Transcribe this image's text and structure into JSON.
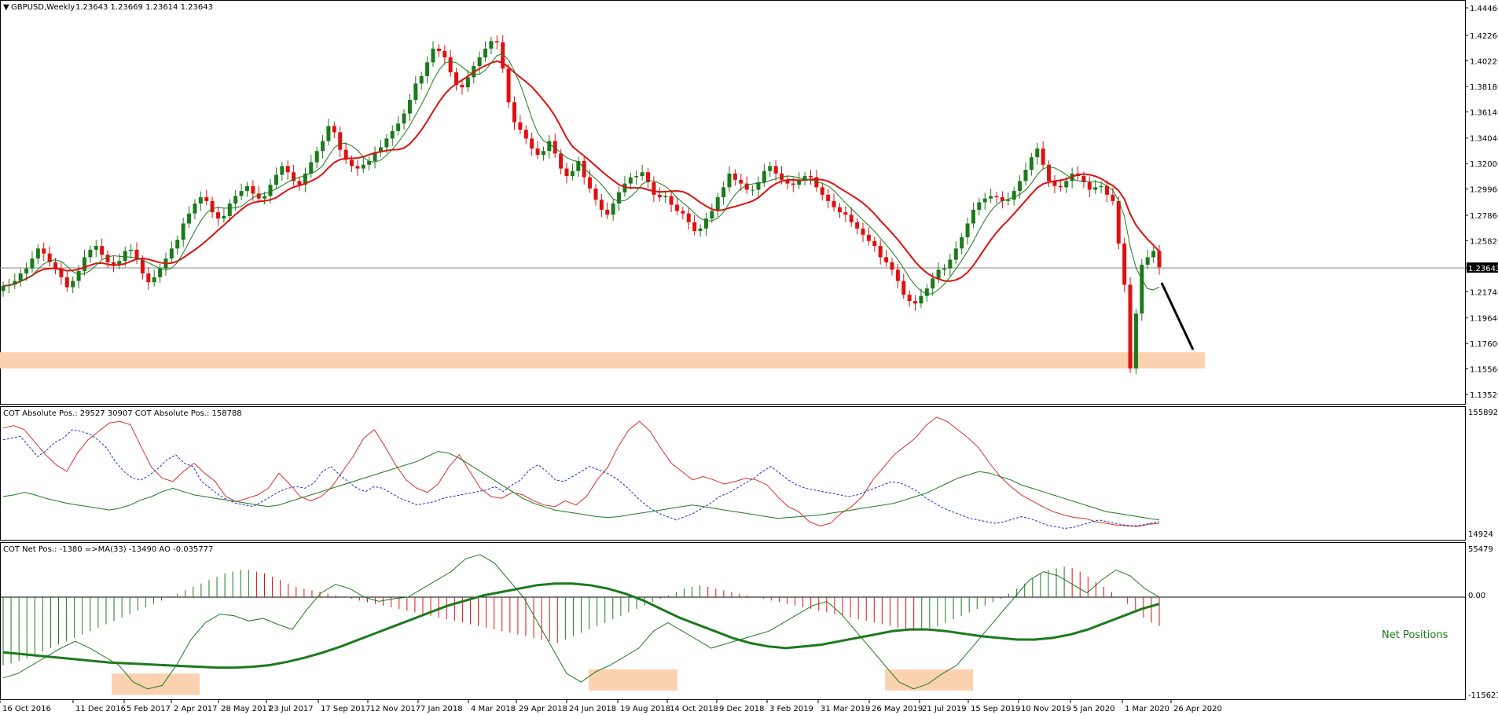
{
  "header": {
    "symbol": "GBPUSD,Weekly",
    "ohlc": "1.23643 1.23669 1.23614 1.23643"
  },
  "panes": {
    "price": {
      "y_ticks": [
        "1.44460",
        "1.42260",
        "1.40220",
        "1.38180",
        "1.36140",
        "1.34040",
        "1.32000",
        "1.29960",
        "1.27860",
        "1.25820",
        "1.23643",
        "1.21740",
        "1.19640",
        "1.17600",
        "1.15560",
        "1.13520"
      ],
      "current_price": "1.23643"
    },
    "cot_absolute": {
      "label": "COT Absolute Pos.: 29527 30907  COT Absolute Pos.: 158788",
      "y_top": "155892",
      "y_bottom": "14924"
    },
    "cot_net": {
      "label": "COT Net Pos.: -1380  =>MA(33) -13490  AO -0.035777",
      "y_top": "55479",
      "y_zero": "0.00",
      "y_bottom": "-115621",
      "annotation": "Net Positions"
    }
  },
  "x_axis_labels": [
    "16 Oct 2016",
    "11 Dec 2016",
    "5 Feb 2017",
    "2 Apr 2017",
    "28 May 2017",
    "23 Jul 2017",
    "17 Sep 2017",
    "12 Nov 2017",
    "7 Jan 2018",
    "4 Mar 2018",
    "29 Apr 2018",
    "24 Jun 2018",
    "19 Aug 2018",
    "14 Oct 2018",
    "9 Dec 2018",
    "3 Feb 2019",
    "31 Mar 2019",
    "26 May 2019",
    "21 Jul 2019",
    "15 Sep 2019",
    "10 Nov 2019",
    "5 Jan 2020",
    "1 Mar 2020",
    "26 Apr 2020"
  ],
  "colors": {
    "bull": "#1c7a1c",
    "bear": "#e01010",
    "ma_slow": "#e01010",
    "ma_fast": "#1c7a1c",
    "cot_line_red": "#d83030",
    "cot_line_blue": "#2030c0",
    "cot_line_green": "#1c7a1c",
    "zone": "#fbd2b0",
    "net_pos_text": "#1c7a1c"
  },
  "chart_data": [
    {
      "type": "candlestick",
      "title": "GBPUSD,Weekly",
      "ylim": [
        1.1352,
        1.4446
      ],
      "closes": [
        1.222,
        1.223,
        1.226,
        1.232,
        1.236,
        1.244,
        1.252,
        1.248,
        1.241,
        1.236,
        1.229,
        1.221,
        1.226,
        1.234,
        1.245,
        1.251,
        1.254,
        1.247,
        1.241,
        1.239,
        1.242,
        1.25,
        1.251,
        1.243,
        1.232,
        1.225,
        1.229,
        1.236,
        1.244,
        1.252,
        1.259,
        1.272,
        1.28,
        1.288,
        1.293,
        1.29,
        1.281,
        1.276,
        1.278,
        1.288,
        1.294,
        1.298,
        1.302,
        1.296,
        1.292,
        1.294,
        1.303,
        1.311,
        1.318,
        1.313,
        1.306,
        1.303,
        1.312,
        1.321,
        1.33,
        1.338,
        1.35,
        1.345,
        1.331,
        1.323,
        1.318,
        1.316,
        1.319,
        1.322,
        1.329,
        1.333,
        1.34,
        1.346,
        1.352,
        1.36,
        1.371,
        1.384,
        1.39,
        1.401,
        1.412,
        1.41,
        1.405,
        1.393,
        1.383,
        1.381,
        1.389,
        1.398,
        1.405,
        1.412,
        1.418,
        1.417,
        1.396,
        1.369,
        1.353,
        1.347,
        1.34,
        1.332,
        1.327,
        1.33,
        1.338,
        1.328,
        1.316,
        1.31,
        1.314,
        1.322,
        1.309,
        1.3,
        1.291,
        1.283,
        1.279,
        1.288,
        1.297,
        1.304,
        1.309,
        1.31,
        1.313,
        1.305,
        1.295,
        1.293,
        1.294,
        1.287,
        1.282,
        1.28,
        1.273,
        1.266,
        1.268,
        1.276,
        1.282,
        1.293,
        1.301,
        1.312,
        1.307,
        1.304,
        1.299,
        1.299,
        1.305,
        1.314,
        1.318,
        1.312,
        1.307,
        1.304,
        1.303,
        1.307,
        1.31,
        1.309,
        1.301,
        1.295,
        1.29,
        1.285,
        1.281,
        1.279,
        1.273,
        1.268,
        1.263,
        1.258,
        1.254,
        1.245,
        1.241,
        1.235,
        1.226,
        1.215,
        1.21,
        1.208,
        1.214,
        1.22,
        1.228,
        1.235,
        1.236,
        1.243,
        1.252,
        1.261,
        1.272,
        1.283,
        1.289,
        1.292,
        1.294,
        1.293,
        1.29,
        1.291,
        1.298,
        1.306,
        1.315,
        1.325,
        1.332,
        1.319,
        1.306,
        1.302,
        1.301,
        1.306,
        1.312,
        1.31,
        1.305,
        1.299,
        1.301,
        1.302,
        1.295,
        1.29,
        1.256,
        1.223,
        1.156,
        1.2,
        1.239,
        1.245,
        1.25,
        1.237
      ],
      "series": [
        {
          "name": "MA slow",
          "color": "#e01010"
        },
        {
          "name": "MA fast",
          "color": "#1c7a1c"
        }
      ],
      "support_zone": [
        1.156,
        1.169
      ]
    },
    {
      "type": "line",
      "ylim": [
        14924,
        155892
      ],
      "series": [
        {
          "name": "red",
          "values": [
            142000,
            145000,
            140000,
            125000,
            110000,
            98000,
            90000,
            112000,
            128000,
            138000,
            148000,
            150000,
            146000,
            120000,
            95000,
            82000,
            78000,
            90000,
            100000,
            88000,
            78000,
            60000,
            54000,
            58000,
            62000,
            70000,
            88000,
            75000,
            60000,
            55000,
            60000,
            72000,
            90000,
            108000,
            130000,
            140000,
            120000,
            98000,
            80000,
            70000,
            65000,
            75000,
            95000,
            110000,
            90000,
            70000,
            60000,
            58000,
            65000,
            62000,
            55000,
            50000,
            48000,
            55000,
            50000,
            60000,
            80000,
            95000,
            120000,
            140000,
            150000,
            138000,
            118000,
            100000,
            90000,
            80000,
            84000,
            80000,
            75000,
            78000,
            82000,
            80000,
            74000,
            60000,
            48000,
            42000,
            30000,
            25000,
            28000,
            40000,
            48000,
            60000,
            80000,
            95000,
            110000,
            120000,
            130000,
            145000,
            155000,
            150000,
            140000,
            130000,
            118000,
            100000,
            84000,
            72000,
            62000,
            55000,
            48000,
            42000,
            38000,
            35000,
            34000,
            30000,
            28000,
            26000,
            25000,
            24000,
            27000,
            28000
          ]
        },
        {
          "name": "blue",
          "values": [
            128000,
            130000,
            132000,
            120000,
            108000,
            115000,
            125000,
            130000,
            140000,
            138000,
            135000,
            128000,
            118000,
            102000,
            90000,
            82000,
            80000,
            86000,
            94000,
            104000,
            110000,
            100000,
            96000,
            78000,
            70000,
            62000,
            56000,
            52000,
            50000,
            48000,
            54000,
            60000,
            66000,
            70000,
            72000,
            70000,
            76000,
            90000,
            96000,
            86000,
            78000,
            70000,
            66000,
            72000,
            70000,
            64000,
            58000,
            54000,
            50000,
            52000,
            54000,
            58000,
            60000,
            62000,
            64000,
            66000,
            68000,
            72000,
            66000,
            74000,
            80000,
            92000,
            98000,
            90000,
            80000,
            78000,
            84000,
            90000,
            96000,
            92000,
            88000,
            82000,
            74000,
            64000,
            54000,
            46000,
            40000,
            36000,
            32000,
            36000,
            40000,
            46000,
            52000,
            60000,
            64000,
            70000,
            76000,
            82000,
            90000,
            96000,
            88000,
            80000,
            74000,
            70000,
            68000,
            66000,
            64000,
            62000,
            60000,
            62000,
            66000,
            70000,
            74000,
            78000,
            76000,
            72000,
            66000,
            58000,
            52000,
            46000,
            42000,
            38000,
            34000,
            32000,
            30000,
            28000,
            30000,
            33000,
            36000,
            34000,
            30000,
            26000,
            24000,
            22000,
            23000,
            26000,
            29000,
            32000,
            30000,
            28000,
            26000,
            25000,
            26000,
            28000,
            30000
          ]
        },
        {
          "name": "green",
          "values": [
            60000,
            62000,
            65000,
            62000,
            58000,
            55000,
            52000,
            50000,
            48000,
            46000,
            44000,
            46000,
            50000,
            56000,
            60000,
            66000,
            70000,
            66000,
            62000,
            60000,
            58000,
            56000,
            54000,
            52000,
            50000,
            48000,
            50000,
            54000,
            58000,
            62000,
            66000,
            70000,
            74000,
            78000,
            82000,
            86000,
            90000,
            94000,
            98000,
            102000,
            108000,
            114000,
            112000,
            106000,
            98000,
            90000,
            82000,
            74000,
            66000,
            58000,
            52000,
            48000,
            44000,
            42000,
            40000,
            38000,
            36000,
            35000,
            36000,
            38000,
            40000,
            42000,
            44000,
            46000,
            48000,
            50000,
            48000,
            46000,
            44000,
            42000,
            40000,
            38000,
            36000,
            34000,
            35000,
            36000,
            37000,
            38000,
            40000,
            42000,
            44000,
            46000,
            48000,
            50000,
            52000,
            56000,
            60000,
            64000,
            70000,
            76000,
            82000,
            86000,
            90000,
            88000,
            84000,
            80000,
            74000,
            70000,
            66000,
            62000,
            58000,
            54000,
            50000,
            46000,
            42000,
            40000,
            38000,
            36000,
            34000,
            32000
          ]
        }
      ]
    },
    {
      "type": "histogram_line",
      "ylim": [
        -115621,
        55479
      ],
      "annotation": "Net Positions",
      "histogram": [
        -80000,
        -78000,
        -75000,
        -72000,
        -68000,
        -64000,
        -60000,
        -56000,
        -52000,
        -48000,
        -44000,
        -40000,
        -36000,
        -32000,
        -28000,
        -24000,
        -20000,
        -16000,
        -12000,
        -8000,
        -4000,
        0,
        4000,
        8000,
        12000,
        16000,
        20000,
        24000,
        28000,
        30000,
        32000,
        32000,
        30000,
        28000,
        24000,
        20000,
        16000,
        12000,
        10000,
        8000,
        6000,
        4000,
        2000,
        0,
        -2000,
        -4000,
        -6000,
        -8000,
        -10000,
        -12000,
        -14000,
        -16000,
        -18000,
        -20000,
        -22000,
        -24000,
        -26000,
        -28000,
        -30000,
        -32000,
        -34000,
        -36000,
        -38000,
        -40000,
        -42000,
        -44000,
        -46000,
        -48000,
        -50000,
        -52000,
        -54000,
        -50000,
        -46000,
        -42000,
        -38000,
        -34000,
        -30000,
        -26000,
        -22000,
        -18000,
        -14000,
        -10000,
        -6000,
        -2000,
        2000,
        6000,
        10000,
        12000,
        14000,
        12000,
        10000,
        8000,
        6000,
        4000,
        2000,
        0,
        -2000,
        -4000,
        -6000,
        -8000,
        -10000,
        -12000,
        -14000,
        -16000,
        -18000,
        -20000,
        -22000,
        -24000,
        -26000,
        -28000,
        -30000,
        -32000,
        -34000,
        -36000,
        -38000,
        -40000,
        -38000,
        -36000,
        -34000,
        -30000,
        -26000,
        -22000,
        -18000,
        -14000,
        -10000,
        -6000,
        -2000,
        4000,
        10000,
        16000,
        22000,
        28000,
        32000,
        34000,
        36000,
        34000,
        30000,
        24000,
        18000,
        12000,
        6000,
        0,
        -8000,
        -16000,
        -24000,
        -30000,
        -34000
      ],
      "series": [
        {
          "name": "MA(33)",
          "values": [
            -65000,
            -67000,
            -69000,
            -71000,
            -73000,
            -75000,
            -77000,
            -78000,
            -79000,
            -80000,
            -81000,
            -82000,
            -83000,
            -83000,
            -82000,
            -80000,
            -76000,
            -71000,
            -65000,
            -58000,
            -50000,
            -42000,
            -34000,
            -26000,
            -18000,
            -10000,
            -4000,
            2000,
            6000,
            10000,
            14000,
            16000,
            16000,
            14000,
            10000,
            4000,
            -4000,
            -14000,
            -24000,
            -32000,
            -40000,
            -48000,
            -54000,
            -58000,
            -60000,
            -58000,
            -56000,
            -52000,
            -48000,
            -44000,
            -40000,
            -38000,
            -38000,
            -40000,
            -43000,
            -46000,
            -48000,
            -50000,
            -50000,
            -48000,
            -44000,
            -38000,
            -30000,
            -22000,
            -14000,
            -8000
          ]
        },
        {
          "name": "AO",
          "values": [
            -95000,
            -90000,
            -80000,
            -70000,
            -60000,
            -52000,
            -60000,
            -70000,
            -80000,
            -100000,
            -108000,
            -104000,
            -80000,
            -50000,
            -30000,
            -20000,
            -22000,
            -28000,
            -25000,
            -32000,
            -38000,
            -15000,
            5000,
            15000,
            10000,
            0,
            -5000,
            -2000,
            0,
            10000,
            20000,
            30000,
            45000,
            50000,
            40000,
            20000,
            0,
            -30000,
            -60000,
            -90000,
            -100000,
            -88000,
            -80000,
            -70000,
            -60000,
            -40000,
            -30000,
            -40000,
            -50000,
            -60000,
            -55000,
            -50000,
            -45000,
            -40000,
            -30000,
            -20000,
            -10000,
            -5000,
            -20000,
            -40000,
            -60000,
            -80000,
            -100000,
            -108000,
            -102000,
            -90000,
            -80000,
            -60000,
            -40000,
            -20000,
            0,
            20000,
            30000,
            25000,
            15000,
            5000,
            20000,
            32000,
            25000,
            10000,
            0
          ]
        }
      ],
      "zones": [
        [
          -115000,
          -90000
        ],
        [
          -110000,
          -85000
        ],
        [
          -110000,
          -85000
        ]
      ]
    }
  ]
}
